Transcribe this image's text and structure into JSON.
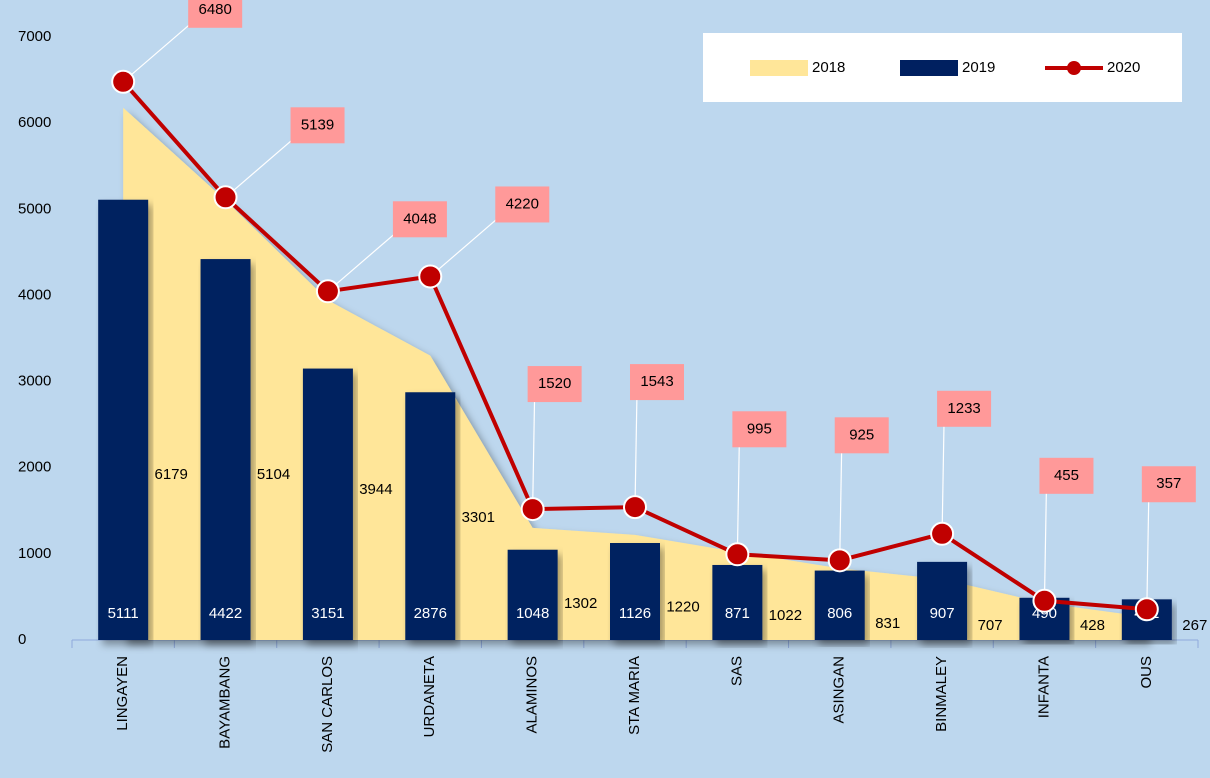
{
  "chart_data": {
    "type": "combo",
    "categories": [
      "LINGAYEN",
      "BAYAMBANG",
      "SAN CARLOS",
      "URDANETA",
      "ALAMINOS",
      "STA MARIA",
      "SAS",
      "ASINGAN",
      "BINMALEY",
      "INFANTA",
      "OUS"
    ],
    "series": [
      {
        "name": "2018",
        "type": "area",
        "color": "#ffe699",
        "values": [
          6179,
          5104,
          3944,
          3301,
          1302,
          1220,
          1022,
          831,
          707,
          428,
          267
        ]
      },
      {
        "name": "2019",
        "type": "bar",
        "color": "#002060",
        "values": [
          5111,
          4422,
          3151,
          2876,
          1048,
          1126,
          871,
          806,
          907,
          490,
          472
        ]
      },
      {
        "name": "2020",
        "type": "line",
        "color": "#c00000",
        "values": [
          6480,
          5139,
          4048,
          4220,
          1520,
          1543,
          995,
          925,
          1233,
          455,
          357
        ]
      }
    ],
    "ylim": [
      0,
      7000
    ],
    "yticks": [
      0,
      1000,
      2000,
      3000,
      4000,
      5000,
      6000,
      7000
    ]
  }
}
